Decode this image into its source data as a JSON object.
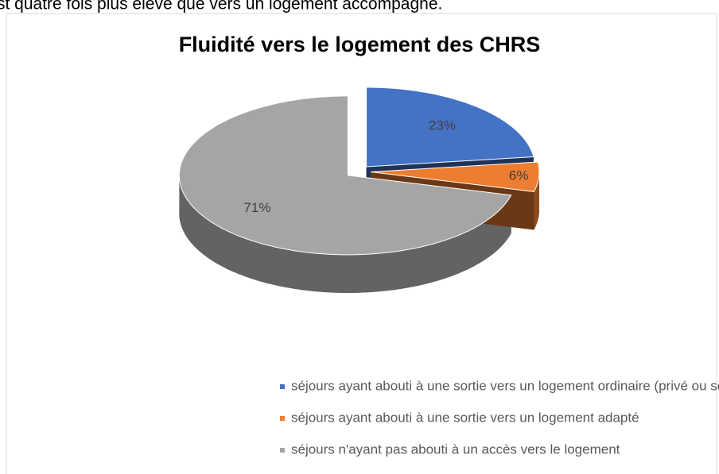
{
  "intro_text": "st quatre fois plus élevé que vers un logement accompagné.",
  "chart_data": {
    "type": "pie",
    "title": "Fluidité vers le logement des CHRS",
    "categories": [
      "séjours ayant abouti à une sortie vers un logement ordinaire (privé ou social)",
      "séjours ayant abouti à une sortie vers un logement adapté",
      "séjours n'ayant pas abouti à un accès vers le logement"
    ],
    "values": [
      23,
      6,
      71
    ],
    "value_labels": [
      "23%",
      "6%",
      "71%"
    ],
    "colors": [
      "#4472c4",
      "#ed7d31",
      "#a5a5a5"
    ],
    "legend": "bottom"
  }
}
